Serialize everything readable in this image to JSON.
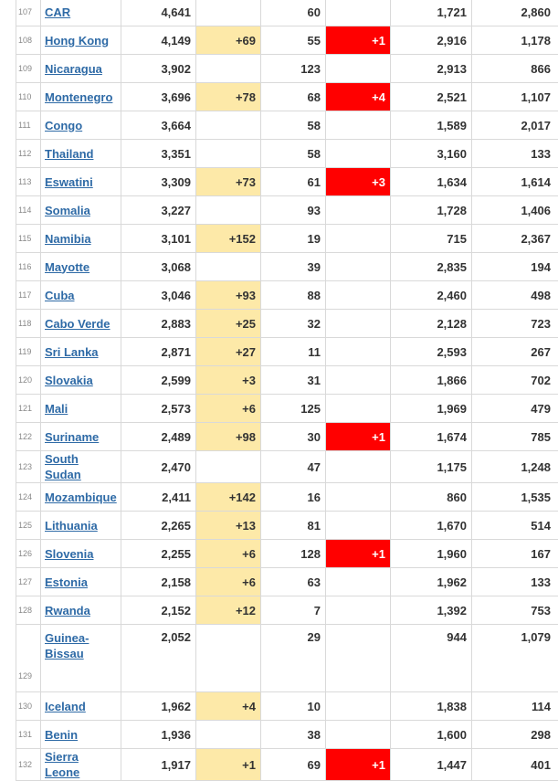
{
  "table": {
    "rows": [
      {
        "rank": "107",
        "country": "CAR",
        "total_cases": "4,641",
        "new_cases": "",
        "total_deaths": "60",
        "new_deaths": "",
        "total_recovered": "1,721",
        "active_cases": "2,860"
      },
      {
        "rank": "108",
        "country": "Hong Kong",
        "total_cases": "4,149",
        "new_cases": "+69",
        "total_deaths": "55",
        "new_deaths": "+1",
        "total_recovered": "2,916",
        "active_cases": "1,178"
      },
      {
        "rank": "109",
        "country": "Nicaragua",
        "total_cases": "3,902",
        "new_cases": "",
        "total_deaths": "123",
        "new_deaths": "",
        "total_recovered": "2,913",
        "active_cases": "866"
      },
      {
        "rank": "110",
        "country": "Montenegro",
        "total_cases": "3,696",
        "new_cases": "+78",
        "total_deaths": "68",
        "new_deaths": "+4",
        "total_recovered": "2,521",
        "active_cases": "1,107"
      },
      {
        "rank": "111",
        "country": "Congo",
        "total_cases": "3,664",
        "new_cases": "",
        "total_deaths": "58",
        "new_deaths": "",
        "total_recovered": "1,589",
        "active_cases": "2,017"
      },
      {
        "rank": "112",
        "country": "Thailand",
        "total_cases": "3,351",
        "new_cases": "",
        "total_deaths": "58",
        "new_deaths": "",
        "total_recovered": "3,160",
        "active_cases": "133"
      },
      {
        "rank": "113",
        "country": "Eswatini",
        "total_cases": "3,309",
        "new_cases": "+73",
        "total_deaths": "61",
        "new_deaths": "+3",
        "total_recovered": "1,634",
        "active_cases": "1,614"
      },
      {
        "rank": "114",
        "country": "Somalia",
        "total_cases": "3,227",
        "new_cases": "",
        "total_deaths": "93",
        "new_deaths": "",
        "total_recovered": "1,728",
        "active_cases": "1,406"
      },
      {
        "rank": "115",
        "country": "Namibia",
        "total_cases": "3,101",
        "new_cases": "+152",
        "total_deaths": "19",
        "new_deaths": "",
        "total_recovered": "715",
        "active_cases": "2,367"
      },
      {
        "rank": "116",
        "country": "Mayotte",
        "total_cases": "3,068",
        "new_cases": "",
        "total_deaths": "39",
        "new_deaths": "",
        "total_recovered": "2,835",
        "active_cases": "194"
      },
      {
        "rank": "117",
        "country": "Cuba",
        "total_cases": "3,046",
        "new_cases": "+93",
        "total_deaths": "88",
        "new_deaths": "",
        "total_recovered": "2,460",
        "active_cases": "498"
      },
      {
        "rank": "118",
        "country": "Cabo Verde",
        "total_cases": "2,883",
        "new_cases": "+25",
        "total_deaths": "32",
        "new_deaths": "",
        "total_recovered": "2,128",
        "active_cases": "723"
      },
      {
        "rank": "119",
        "country": "Sri Lanka",
        "total_cases": "2,871",
        "new_cases": "+27",
        "total_deaths": "11",
        "new_deaths": "",
        "total_recovered": "2,593",
        "active_cases": "267"
      },
      {
        "rank": "120",
        "country": "Slovakia",
        "total_cases": "2,599",
        "new_cases": "+3",
        "total_deaths": "31",
        "new_deaths": "",
        "total_recovered": "1,866",
        "active_cases": "702"
      },
      {
        "rank": "121",
        "country": "Mali",
        "total_cases": "2,573",
        "new_cases": "+6",
        "total_deaths": "125",
        "new_deaths": "",
        "total_recovered": "1,969",
        "active_cases": "479"
      },
      {
        "rank": "122",
        "country": "Suriname",
        "total_cases": "2,489",
        "new_cases": "+98",
        "total_deaths": "30",
        "new_deaths": "+1",
        "total_recovered": "1,674",
        "active_cases": "785"
      },
      {
        "rank": "123",
        "country": "South Sudan",
        "total_cases": "2,470",
        "new_cases": "",
        "total_deaths": "47",
        "new_deaths": "",
        "total_recovered": "1,175",
        "active_cases": "1,248"
      },
      {
        "rank": "124",
        "country": "Mozambique",
        "total_cases": "2,411",
        "new_cases": "+142",
        "total_deaths": "16",
        "new_deaths": "",
        "total_recovered": "860",
        "active_cases": "1,535"
      },
      {
        "rank": "125",
        "country": "Lithuania",
        "total_cases": "2,265",
        "new_cases": "+13",
        "total_deaths": "81",
        "new_deaths": "",
        "total_recovered": "1,670",
        "active_cases": "514"
      },
      {
        "rank": "126",
        "country": "Slovenia",
        "total_cases": "2,255",
        "new_cases": "+6",
        "total_deaths": "128",
        "new_deaths": "+1",
        "total_recovered": "1,960",
        "active_cases": "167"
      },
      {
        "rank": "127",
        "country": "Estonia",
        "total_cases": "2,158",
        "new_cases": "+6",
        "total_deaths": "63",
        "new_deaths": "",
        "total_recovered": "1,962",
        "active_cases": "133"
      },
      {
        "rank": "128",
        "country": "Rwanda",
        "total_cases": "2,152",
        "new_cases": "+12",
        "total_deaths": "7",
        "new_deaths": "",
        "total_recovered": "1,392",
        "active_cases": "753"
      },
      {
        "rank": "129",
        "country": "Guinea-Bissau",
        "total_cases": "2,052",
        "new_cases": "",
        "total_deaths": "29",
        "new_deaths": "",
        "total_recovered": "944",
        "active_cases": "1,079"
      },
      {
        "rank": "130",
        "country": "Iceland",
        "total_cases": "1,962",
        "new_cases": "+4",
        "total_deaths": "10",
        "new_deaths": "",
        "total_recovered": "1,838",
        "active_cases": "114"
      },
      {
        "rank": "131",
        "country": "Benin",
        "total_cases": "1,936",
        "new_cases": "",
        "total_deaths": "38",
        "new_deaths": "",
        "total_recovered": "1,600",
        "active_cases": "298"
      },
      {
        "rank": "132",
        "country": "Sierra Leone",
        "total_cases": "1,917",
        "new_cases": "+1",
        "total_deaths": "69",
        "new_deaths": "+1",
        "total_recovered": "1,447",
        "active_cases": "401"
      }
    ]
  },
  "colors": {
    "new_cases_highlight": "#fde9a8",
    "new_deaths_highlight": "#ff0000",
    "link": "#2e6aa6"
  }
}
